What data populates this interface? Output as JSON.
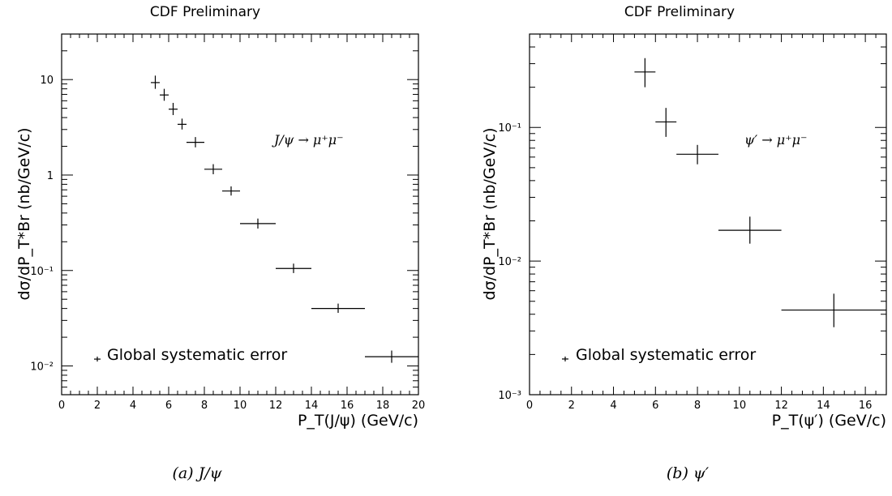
{
  "chart_data": [
    {
      "type": "scatter",
      "title": "CDF Preliminary",
      "xlabel": "P_T(J/ψ) (GeV/c)",
      "ylabel": "dσ/dP_T*Br (nb/GeV/c)",
      "process_label": "J/ψ → μ⁺μ⁻",
      "legend_text": "Global systematic error",
      "caption": "(a) J/ψ",
      "xlim": [
        0,
        20
      ],
      "ylim": [
        0.005,
        30
      ],
      "y_scale": "log",
      "x_ticks": [
        "0",
        "2",
        "4",
        "6",
        "8",
        "10",
        "12",
        "14",
        "16",
        "18",
        "20"
      ],
      "y_ticks": [
        {
          "value": 0.01,
          "label": "10⁻²"
        },
        {
          "value": 0.1,
          "label": "10⁻¹"
        },
        {
          "value": 1,
          "label": "1"
        },
        {
          "value": 10,
          "label": "10"
        }
      ],
      "legend_marker": {
        "x": 2.0,
        "y": 0.0118
      },
      "points": [
        {
          "x": 5.25,
          "y": 9.3,
          "xerr": 0.25,
          "ylo": 8.0,
          "yhi": 11.0
        },
        {
          "x": 5.75,
          "y": 6.9,
          "xerr": 0.25,
          "ylo": 6.0,
          "yhi": 8.0
        },
        {
          "x": 6.25,
          "y": 4.9,
          "xerr": 0.25,
          "ylo": 4.25,
          "yhi": 5.7
        },
        {
          "x": 6.75,
          "y": 3.4,
          "xerr": 0.25,
          "ylo": 3.0,
          "yhi": 3.9
        },
        {
          "x": 7.5,
          "y": 2.2,
          "xerr": 0.5,
          "ylo": 1.95,
          "yhi": 2.5
        },
        {
          "x": 8.5,
          "y": 1.15,
          "xerr": 0.5,
          "ylo": 1.02,
          "yhi": 1.3
        },
        {
          "x": 9.5,
          "y": 0.68,
          "xerr": 0.5,
          "ylo": 0.61,
          "yhi": 0.76
        },
        {
          "x": 11.0,
          "y": 0.31,
          "xerr": 1.0,
          "ylo": 0.275,
          "yhi": 0.35
        },
        {
          "x": 13.0,
          "y": 0.105,
          "xerr": 1.0,
          "ylo": 0.094,
          "yhi": 0.118
        },
        {
          "x": 15.5,
          "y": 0.04,
          "xerr": 1.5,
          "ylo": 0.036,
          "yhi": 0.045
        },
        {
          "x": 18.5,
          "y": 0.0125,
          "xerr": 1.5,
          "ylo": 0.0108,
          "yhi": 0.0145
        }
      ]
    },
    {
      "type": "scatter",
      "title": "CDF Preliminary",
      "xlabel": "P_T(ψ′) (GeV/c)",
      "ylabel": "dσ/dP_T*Br (nb/GeV/c)",
      "process_label": "ψ′ → μ⁺μ⁻",
      "legend_text": "Global systematic error",
      "caption": "(b) ψ′",
      "xlim": [
        0,
        17
      ],
      "ylim": [
        0.001,
        0.5
      ],
      "y_scale": "log",
      "x_ticks": [
        "0",
        "2",
        "4",
        "6",
        "8",
        "10",
        "12",
        "14",
        "16"
      ],
      "y_ticks": [
        {
          "value": 0.001,
          "label": "10⁻³"
        },
        {
          "value": 0.01,
          "label": "10⁻²"
        },
        {
          "value": 0.1,
          "label": "10⁻¹"
        }
      ],
      "legend_marker": {
        "x": 1.7,
        "y": 0.00185
      },
      "points": [
        {
          "x": 5.5,
          "y": 0.26,
          "xerr": 0.5,
          "ylo": 0.2,
          "yhi": 0.33
        },
        {
          "x": 6.5,
          "y": 0.11,
          "xerr": 0.5,
          "ylo": 0.085,
          "yhi": 0.14
        },
        {
          "x": 8.0,
          "y": 0.063,
          "xerr": 1.0,
          "ylo": 0.053,
          "yhi": 0.074
        },
        {
          "x": 10.5,
          "y": 0.017,
          "xerr": 1.5,
          "ylo": 0.0135,
          "yhi": 0.0215
        },
        {
          "x": 14.5,
          "y": 0.0043,
          "xerr": 2.5,
          "ylo": 0.0032,
          "yhi": 0.0057
        }
      ]
    }
  ]
}
